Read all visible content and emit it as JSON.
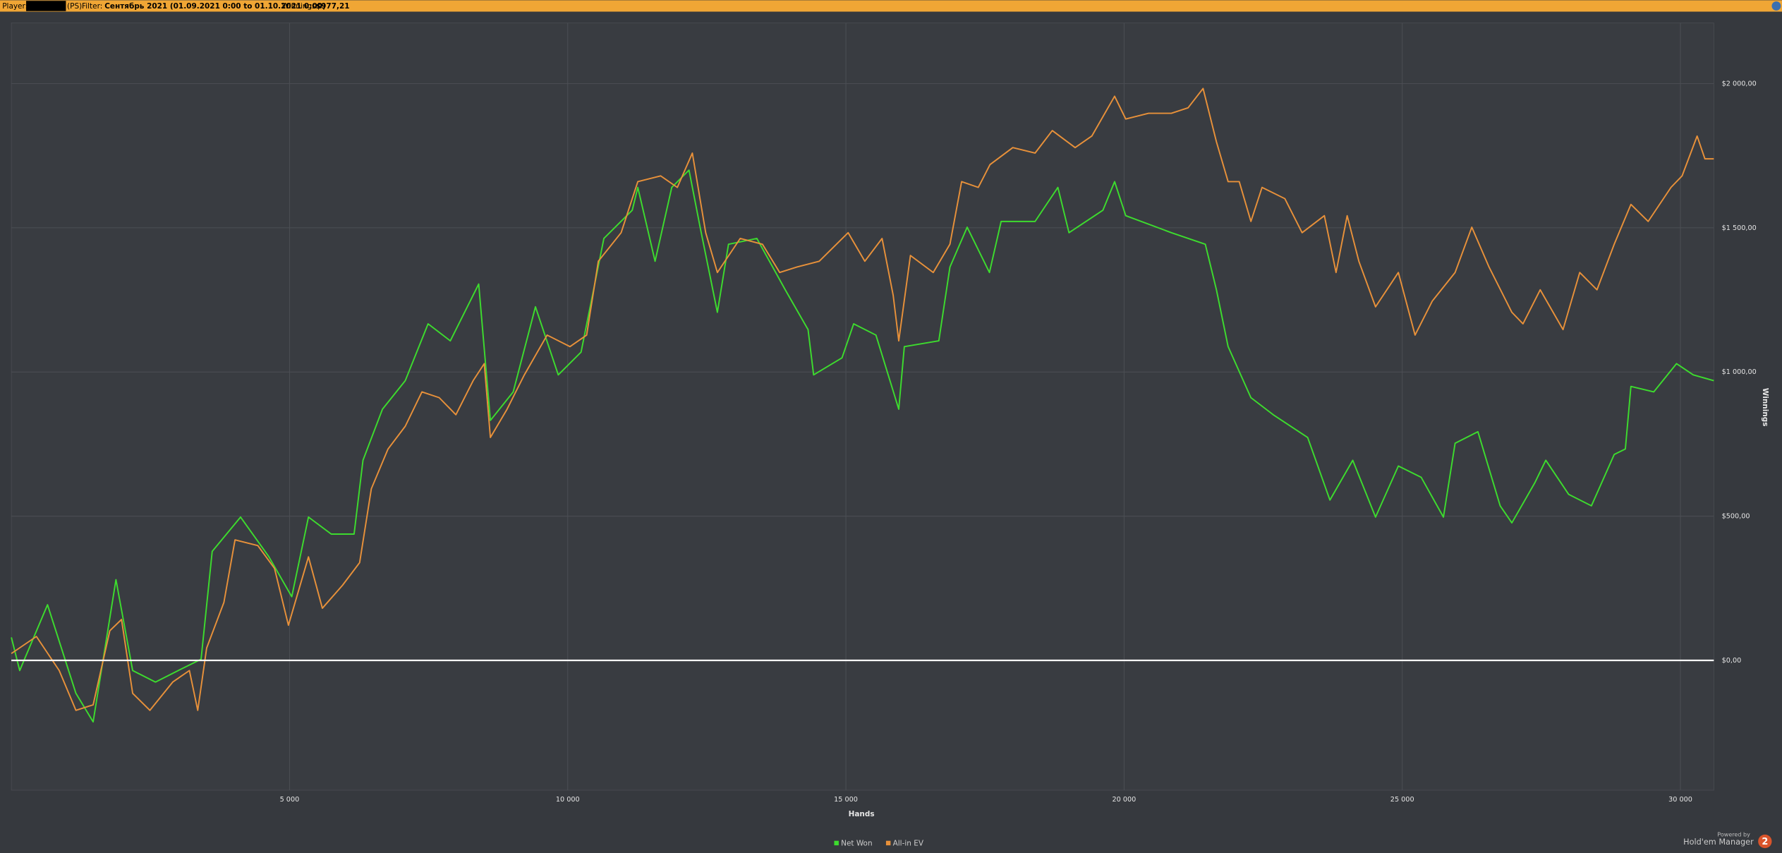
{
  "header": {
    "player_label": "Player:",
    "site": "(PS)",
    "filter_label": "Filter:",
    "filter": "Сентябрь 2021 (01.09.2021 0:00 to 01.10.2021 0:00)",
    "winnings_label": "Winnings:",
    "winnings": "$977,21"
  },
  "footer": {
    "powered": "Powered by",
    "brand": "Hold'em Manager",
    "logo": "2"
  },
  "chart_data": {
    "type": "line",
    "x_label": "Hands",
    "y_label": "Winnings",
    "xlim": [
      0,
      30600
    ],
    "ylim": [
      -450,
      2210
    ],
    "grid": true,
    "xticks": [
      {
        "value": 5000,
        "label": "5 000"
      },
      {
        "value": 10000,
        "label": "10 000"
      },
      {
        "value": 15000,
        "label": "15 000"
      },
      {
        "value": 20000,
        "label": "20 000"
      },
      {
        "value": 25000,
        "label": "25 000"
      },
      {
        "value": 30000,
        "label": "30 000"
      }
    ],
    "yticks": [
      {
        "value": 0,
        "label": "$0,00"
      },
      {
        "value": 500,
        "label": "$500,00"
      },
      {
        "value": 1000,
        "label": "$1 000,00"
      },
      {
        "value": 1500,
        "label": "$1 500,00"
      },
      {
        "value": 2000,
        "label": "$2 000,00"
      }
    ],
    "series": [
      {
        "name": "Net Won",
        "color": "#3ddc2e",
        "x": [
          0,
          150,
          650,
          1160,
          1470,
          1880,
          2180,
          2590,
          3000,
          3410,
          3610,
          4120,
          4630,
          5040,
          5340,
          5750,
          6160,
          6320,
          6670,
          7080,
          7490,
          7890,
          8400,
          8610,
          9020,
          9420,
          9830,
          10240,
          10650,
          11160,
          11260,
          11570,
          11870,
          12180,
          12380,
          12690,
          12890,
          13400,
          13910,
          14320,
          14420,
          14930,
          15140,
          15540,
          15950,
          16050,
          16670,
          16870,
          17180,
          17580,
          17790,
          18400,
          18810,
          19010,
          19620,
          19830,
          20030,
          20850,
          21460,
          21660,
          21870,
          22280,
          22680,
          23300,
          23700,
          24110,
          24520,
          24930,
          25340,
          25740,
          25950,
          26360,
          26760,
          26970,
          27380,
          27580,
          27990,
          28400,
          28810,
          29010,
          29110,
          29520,
          29930,
          30230,
          30600
        ],
        "values": [
          80,
          -35,
          193,
          -114,
          -213,
          280,
          -35,
          -75,
          -35,
          4,
          378,
          497,
          359,
          221,
          497,
          438,
          438,
          694,
          871,
          970,
          1167,
          1108,
          1305,
          832,
          931,
          1226,
          990,
          1069,
          1463,
          1561,
          1640,
          1384,
          1640,
          1700,
          1502,
          1207,
          1443,
          1463,
          1285,
          1147,
          990,
          1049,
          1167,
          1128,
          871,
          1088,
          1108,
          1364,
          1502,
          1345,
          1522,
          1522,
          1640,
          1483,
          1561,
          1660,
          1542,
          1483,
          1443,
          1285,
          1088,
          911,
          852,
          773,
          556,
          694,
          497,
          674,
          635,
          497,
          753,
          793,
          536,
          477,
          615,
          694,
          576,
          536,
          714,
          733,
          950,
          931,
          1029,
          990,
          970
        ]
      },
      {
        "name": "All-in EV",
        "color": "#e8913a",
        "x": [
          0,
          450,
          860,
          1160,
          1470,
          1770,
          1980,
          2180,
          2490,
          2900,
          3200,
          3350,
          3510,
          3820,
          4020,
          4430,
          4730,
          4980,
          5340,
          5590,
          5950,
          6260,
          6470,
          6770,
          7080,
          7380,
          7690,
          7990,
          8300,
          8500,
          8610,
          8910,
          9220,
          9630,
          10040,
          10340,
          10550,
          10960,
          11260,
          11670,
          11970,
          12240,
          12480,
          12690,
          13100,
          13500,
          13810,
          14120,
          14520,
          15040,
          15340,
          15650,
          15850,
          15950,
          16160,
          16570,
          16870,
          17080,
          17380,
          17590,
          18000,
          18400,
          18710,
          19120,
          19420,
          19830,
          20030,
          20440,
          20850,
          21150,
          21420,
          21660,
          21870,
          22070,
          22280,
          22480,
          22890,
          23200,
          23600,
          23810,
          24010,
          24220,
          24520,
          24930,
          25230,
          25540,
          25950,
          26250,
          26560,
          26970,
          27170,
          27480,
          27890,
          28190,
          28500,
          28810,
          29110,
          29420,
          29830,
          30030,
          30300,
          30440,
          30600
        ],
        "values": [
          24,
          83,
          -35,
          -173,
          -154,
          103,
          142,
          -114,
          -173,
          -75,
          -35,
          -173,
          43,
          201,
          418,
          398,
          319,
          122,
          359,
          181,
          260,
          339,
          595,
          733,
          812,
          931,
          911,
          852,
          970,
          1029,
          773,
          871,
          990,
          1128,
          1088,
          1128,
          1384,
          1483,
          1660,
          1680,
          1640,
          1759,
          1483,
          1345,
          1463,
          1443,
          1345,
          1364,
          1384,
          1483,
          1384,
          1463,
          1266,
          1108,
          1404,
          1345,
          1443,
          1660,
          1640,
          1719,
          1778,
          1759,
          1837,
          1778,
          1818,
          1956,
          1877,
          1897,
          1897,
          1916,
          1983,
          1798,
          1660,
          1660,
          1522,
          1640,
          1601,
          1483,
          1542,
          1345,
          1542,
          1384,
          1226,
          1345,
          1128,
          1246,
          1345,
          1502,
          1364,
          1207,
          1167,
          1285,
          1147,
          1345,
          1285,
          1443,
          1581,
          1522,
          1640,
          1680,
          1818,
          1739,
          1739
        ]
      }
    ]
  }
}
